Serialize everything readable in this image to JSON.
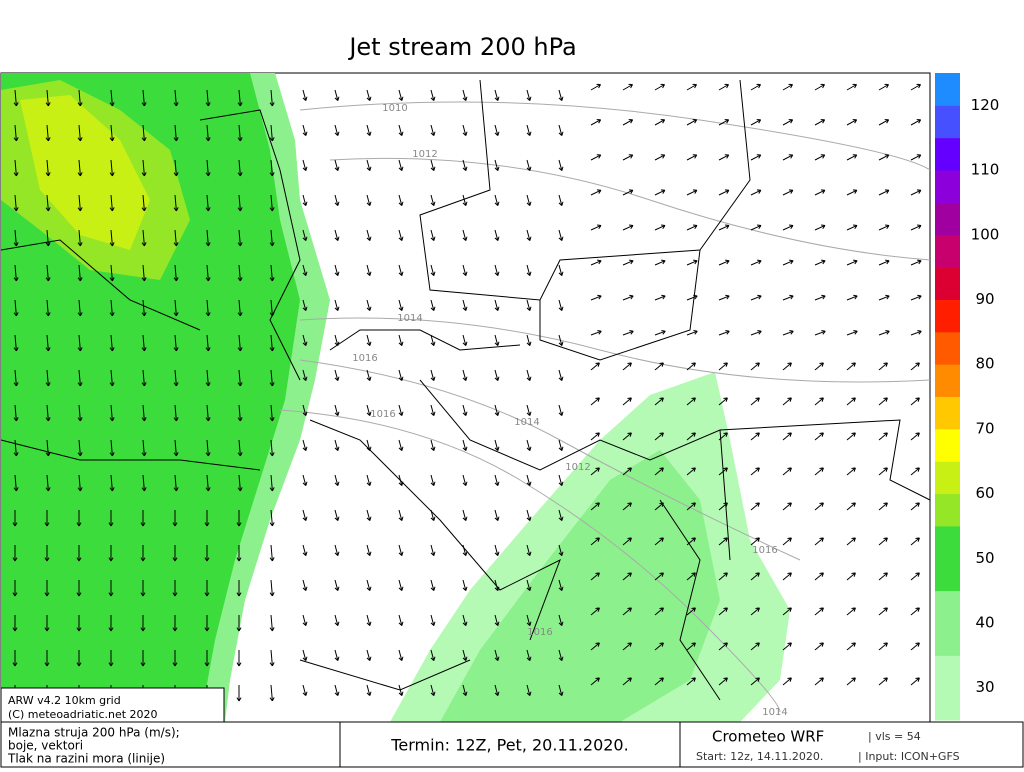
{
  "title": "Jet stream 200 hPa",
  "colorbar": {
    "lim": [
      25,
      125
    ],
    "ticks": [
      30,
      40,
      50,
      60,
      70,
      80,
      90,
      100,
      110,
      120
    ],
    "colors": [
      "#b4fab4",
      "#b4fab4",
      "#8cf08c",
      "#8cf08c",
      "#3cdc3c",
      "#3cdc3c",
      "#96e628",
      "#c8f014",
      "#ffff00",
      "#ffc800",
      "#ff8c00",
      "#ff5a00",
      "#ff1e00",
      "#dc0032",
      "#c8006e",
      "#a000a0",
      "#8c00dc",
      "#6400ff",
      "#4650ff",
      "#1e8cff"
    ]
  },
  "isobar_labels": [
    1010,
    1012,
    1014,
    1016,
    1016,
    1014,
    1012,
    1016,
    1016,
    1014,
    1014
  ],
  "info": {
    "model": "ARW v4.2 10km grid",
    "copyright": "(C) meteoadriatic.net 2020"
  },
  "legend": [
    "Mlazna struja 200 hPa (m/s);",
    "boje, vektori",
    "Tlak na razini mora (linije)"
  ],
  "term": "Termin: 12Z, Pet, 20.11.2020.",
  "brand": "Crometeo WRF",
  "vls": "vls = 54",
  "start": "Start: 12z, 14.11.2020.",
  "input": "Input: ICON+GFS"
}
